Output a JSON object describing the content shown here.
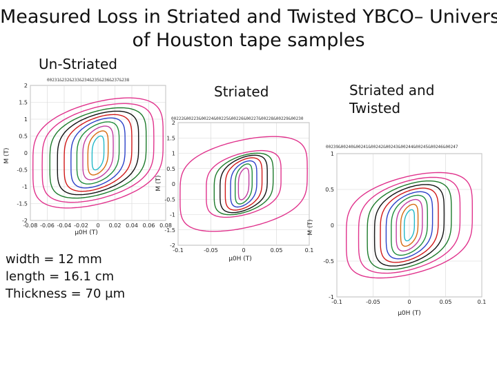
{
  "slide": {
    "title_line1": "Measured Loss in Striated and Twisted YBCO– Universit",
    "title_line2": "of Houston tape samples",
    "label_unstriated": "Un-Striated",
    "label_striated": "Striated",
    "label_twisted_line1": "Striated and",
    "label_twisted_line2": "Twisted",
    "spec_width": "width = 12 mm",
    "spec_length": "length = 16.1 cm",
    "spec_thickness": "Thickness = 70 μm"
  },
  "colors": [
    "#e0328c",
    "#e0328c",
    "#1c7a2a",
    "#111111",
    "#d01818",
    "#2a40c8",
    "#1e8c3a",
    "#c03aa0",
    "#d66a10",
    "#22b8c8",
    "#1a6b2a"
  ],
  "chart_data": [
    {
      "type": "line",
      "title": "",
      "header_text": "00231&232&233&234&235&236&237&238",
      "xlabel": "μ0H (T)",
      "ylabel": "M (T)",
      "xlim": [
        -0.08,
        0.08
      ],
      "ylim": [
        -2,
        2
      ],
      "xticks": [
        "-0.08",
        "-0.06",
        "-0.04",
        "-0.02",
        "0",
        "0.02",
        "0.04",
        "0.06",
        "0.08"
      ],
      "yticks": [
        "-2",
        "-1.5",
        "-1",
        "-0.5",
        "0",
        "0.5",
        "1",
        "1.5",
        "2"
      ],
      "grid": true,
      "loops": [
        {
          "amplitude_x": 0.077,
          "amplitude_y": 1.95
        },
        {
          "amplitude_x": 0.066,
          "amplitude_y": 1.75
        },
        {
          "amplitude_x": 0.057,
          "amplitude_y": 1.6
        },
        {
          "amplitude_x": 0.048,
          "amplitude_y": 1.48
        },
        {
          "amplitude_x": 0.04,
          "amplitude_y": 1.36
        },
        {
          "amplitude_x": 0.032,
          "amplitude_y": 1.24
        },
        {
          "amplitude_x": 0.025,
          "amplitude_y": 1.1
        },
        {
          "amplitude_x": 0.018,
          "amplitude_y": 0.95
        },
        {
          "amplitude_x": 0.012,
          "amplitude_y": 0.78
        },
        {
          "amplitude_x": 0.007,
          "amplitude_y": 0.6
        }
      ]
    },
    {
      "type": "line",
      "title": "",
      "header_text": "00222&00223&00224&00225&00226&00227&00228&00229&00230",
      "xlabel": "μ0H (T)",
      "ylabel": "M (T)",
      "xlim": [
        -0.1,
        0.1
      ],
      "ylim": [
        -2,
        2
      ],
      "xticks": [
        "-0.1",
        "-0.05",
        "0",
        "0.05",
        "0.1"
      ],
      "yticks": [
        "-2",
        "-1.5",
        "-1",
        "-0.5",
        "0",
        "0.5",
        "1",
        "1.5",
        "2"
      ],
      "grid": true,
      "loops": [
        {
          "amplitude_x": 0.097,
          "amplitude_y": 1.85
        },
        {
          "amplitude_x": 0.057,
          "amplitude_y": 1.3
        },
        {
          "amplitude_x": 0.045,
          "amplitude_y": 1.2
        },
        {
          "amplitude_x": 0.036,
          "amplitude_y": 1.12
        },
        {
          "amplitude_x": 0.028,
          "amplitude_y": 1.02
        },
        {
          "amplitude_x": 0.02,
          "amplitude_y": 0.9
        },
        {
          "amplitude_x": 0.013,
          "amplitude_y": 0.78
        },
        {
          "amplitude_x": 0.008,
          "amplitude_y": 0.62
        }
      ]
    },
    {
      "type": "line",
      "title": "",
      "header_text": "00239&00240&00241&00242&00243&00244&00245&00246&00247",
      "xlabel": "μ0H (T)",
      "ylabel": "M (T)",
      "xlim": [
        -0.1,
        0.1
      ],
      "ylim": [
        -1,
        1
      ],
      "xticks": [
        "-0.1",
        "-0.05",
        "0",
        "0.05",
        "0.1"
      ],
      "yticks": [
        "-1",
        "-0.5",
        "0",
        "0.5",
        "1"
      ],
      "grid": true,
      "loops": [
        {
          "amplitude_x": 0.087,
          "amplitude_y": 0.88
        },
        {
          "amplitude_x": 0.07,
          "amplitude_y": 0.8
        },
        {
          "amplitude_x": 0.058,
          "amplitude_y": 0.74
        },
        {
          "amplitude_x": 0.048,
          "amplitude_y": 0.68
        },
        {
          "amplitude_x": 0.04,
          "amplitude_y": 0.62
        },
        {
          "amplitude_x": 0.032,
          "amplitude_y": 0.56
        },
        {
          "amplitude_x": 0.025,
          "amplitude_y": 0.5
        },
        {
          "amplitude_x": 0.018,
          "amplitude_y": 0.43
        },
        {
          "amplitude_x": 0.012,
          "amplitude_y": 0.35
        },
        {
          "amplitude_x": 0.007,
          "amplitude_y": 0.26
        }
      ]
    }
  ]
}
